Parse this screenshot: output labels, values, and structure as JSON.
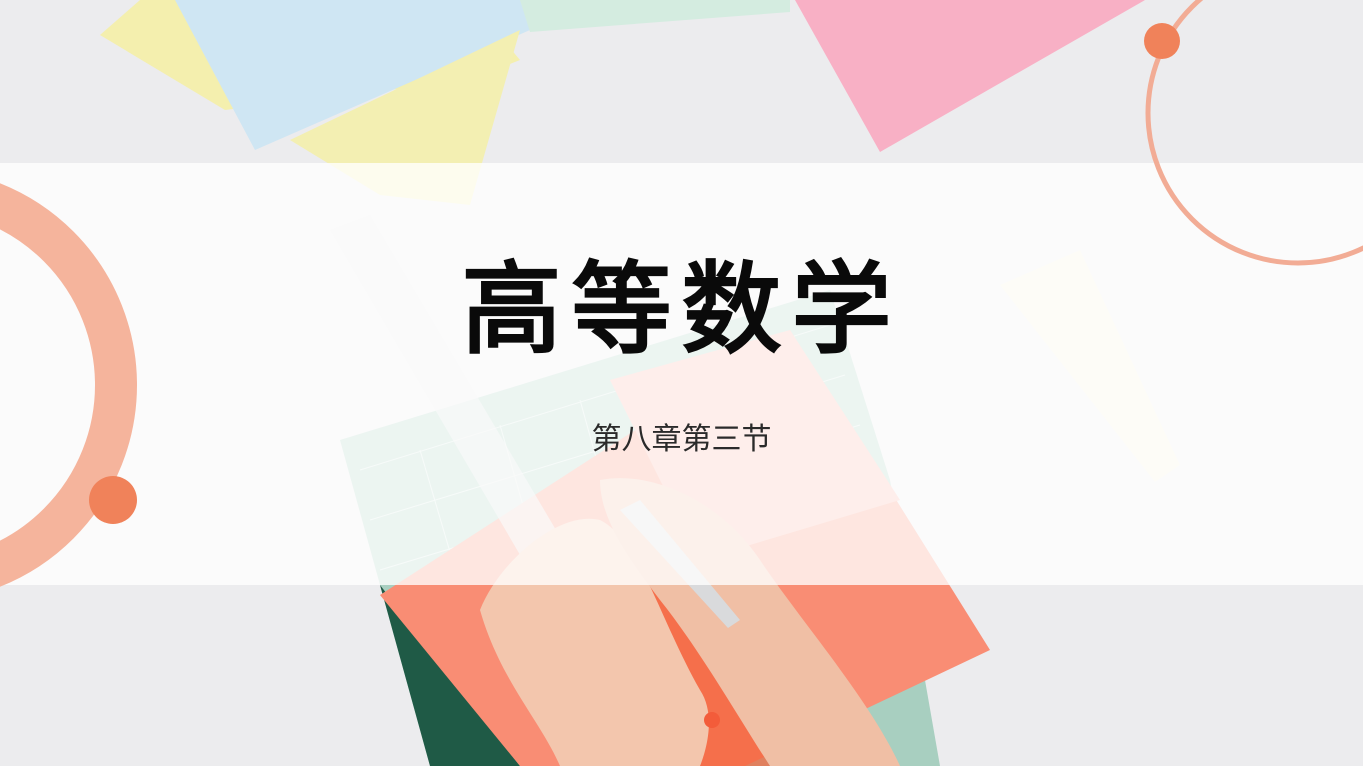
{
  "slide": {
    "title": "高等数学",
    "subtitle": "第八章第三节"
  },
  "colors": {
    "accent": "#f0825a",
    "accent_light": "#f5b49c",
    "band": "#ffffff",
    "title_text": "#0a0a0a",
    "subtitle_text": "#2a2a2a"
  },
  "icons": {
    "left_ring": "ring-decoration-icon",
    "left_dot": "dot-decoration-icon",
    "right_ring": "ring-decoration-icon",
    "right_dot": "dot-decoration-icon"
  }
}
